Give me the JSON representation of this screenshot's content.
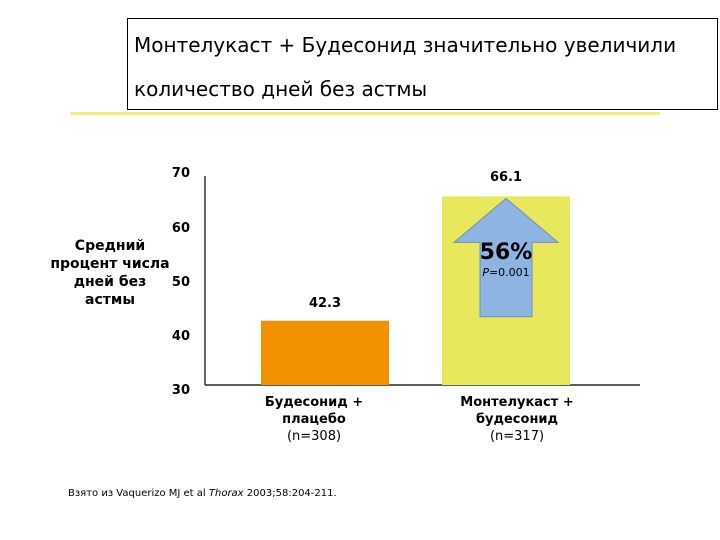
{
  "title": {
    "line1": "Монтелукаст + Будесонид значительно увеличили",
    "line2": "количество дней без астмы"
  },
  "chart_data": {
    "type": "bar",
    "ylabel": "Средний процент числа дней без астмы",
    "ylim": [
      30,
      70
    ],
    "yticks": [
      "70",
      "60",
      "50",
      "40",
      "30"
    ],
    "categories": [
      {
        "name": "Будесонид + плацебо",
        "n": "(n=308)"
      },
      {
        "name": "Монтелукаст + будесонид",
        "n": "(n=317)"
      }
    ],
    "values": [
      42.3,
      66.1
    ],
    "value_labels": [
      "42.3",
      "66.1"
    ],
    "colors": [
      "#f39200",
      "#e8e85c"
    ],
    "annotation": {
      "percent": "56%",
      "p_prefix": "P",
      "p_suffix": "=0.001",
      "arrow_color": "#8db4e2"
    }
  },
  "footnote": {
    "prefix": "Взято из Vaquerizo MJ et al ",
    "journal": "Thorax",
    "suffix": " 2003;58:204-211."
  }
}
